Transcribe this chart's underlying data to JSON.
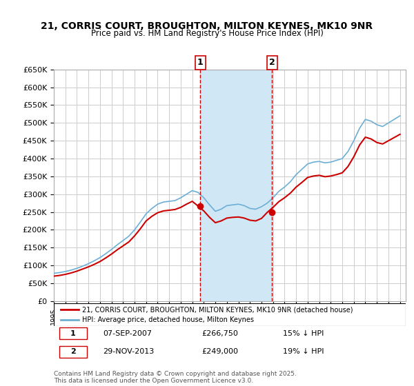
{
  "title": "21, CORRIS COURT, BROUGHTON, MILTON KEYNES, MK10 9NR",
  "subtitle": "Price paid vs. HM Land Registry's House Price Index (HPI)",
  "legend_property": "21, CORRIS COURT, BROUGHTON, MILTON KEYNES, MK10 9NR (detached house)",
  "legend_hpi": "HPI: Average price, detached house, Milton Keynes",
  "transaction1_label": "1",
  "transaction1_date": "07-SEP-2007",
  "transaction1_price": "£266,750",
  "transaction1_hpi": "15% ↓ HPI",
  "transaction2_label": "2",
  "transaction2_date": "29-NOV-2013",
  "transaction2_price": "£249,000",
  "transaction2_hpi": "19% ↓ HPI",
  "footer": "Contains HM Land Registry data © Crown copyright and database right 2025.\nThis data is licensed under the Open Government Licence v3.0.",
  "property_color": "#cc0000",
  "hpi_color": "#6baed6",
  "shade_color": "#d0e8f5",
  "vline_color": "#cc0000",
  "ylim": [
    0,
    650000
  ],
  "yticks": [
    0,
    50000,
    100000,
    150000,
    200000,
    250000,
    300000,
    350000,
    400000,
    450000,
    500000,
    550000,
    600000,
    650000
  ],
  "xlim_start": 1995.0,
  "xlim_end": 2025.5,
  "vline1_x": 2007.68,
  "vline2_x": 2013.91,
  "transaction1_marker_x": 2007.68,
  "transaction1_marker_y": 266750,
  "transaction2_marker_x": 2013.91,
  "transaction2_marker_y": 249000
}
